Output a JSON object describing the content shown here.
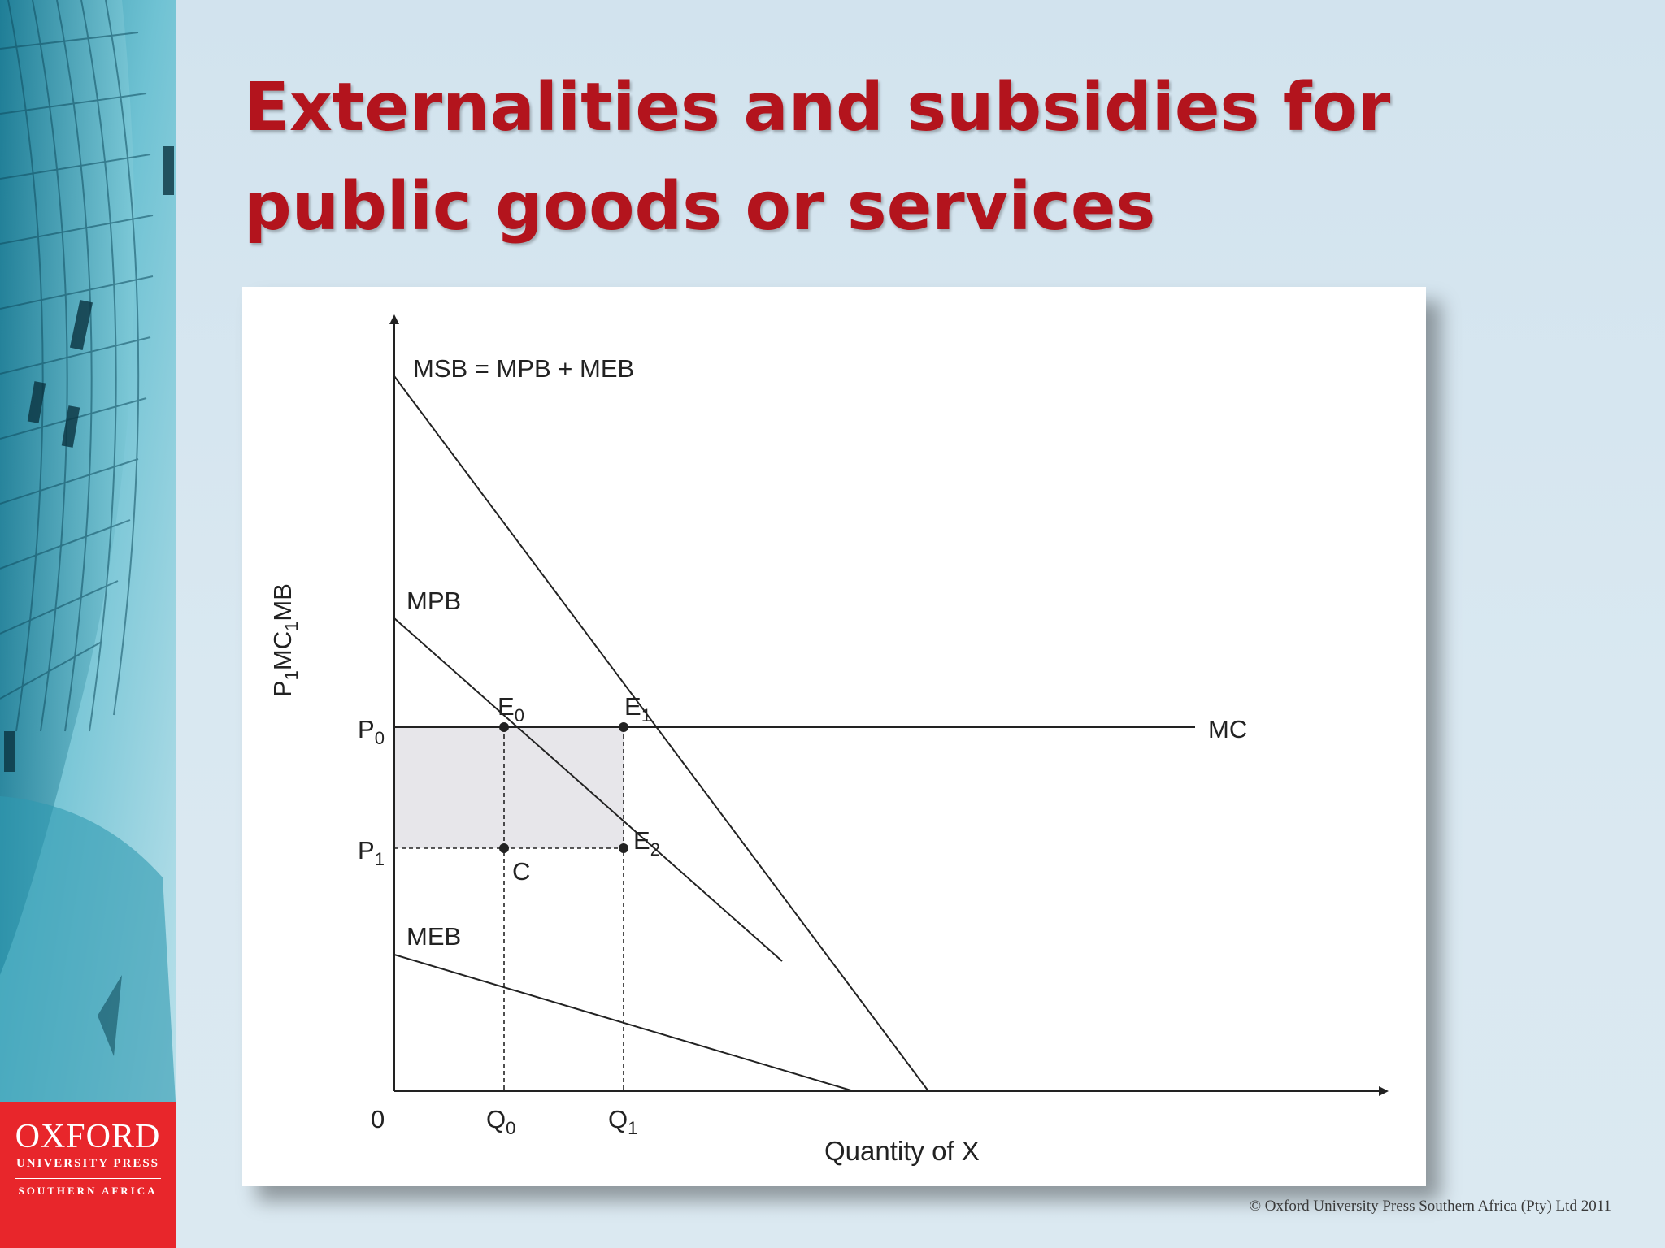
{
  "slide": {
    "title": "Externalities and subsidies for public goods or services",
    "copyright": "© Oxford University Press Southern Africa (Pty) Ltd 2011",
    "accent_color": "#b3141d"
  },
  "logo": {
    "line1": "OXFORD",
    "line2": "UNIVERSITY PRESS",
    "line3": "SOUTHERN AFRICA",
    "color": "#e8262b"
  },
  "diagram": {
    "y_axis_label": {
      "main": "P",
      "sub": "1",
      "rest": "MC",
      "sub2": "1",
      "rest2": "MB"
    },
    "x_axis_label": "Quantity of X",
    "origin": "0",
    "curves": {
      "msb": "MSB = MPB + MEB",
      "mpb": "MPB",
      "meb": "MEB",
      "mc": "MC"
    },
    "points": {
      "e0": {
        "main": "E",
        "sub": "0"
      },
      "e1": {
        "main": "E",
        "sub": "1"
      },
      "e2": {
        "main": "E",
        "sub": "2"
      },
      "c": "C"
    },
    "ticks": {
      "p0": {
        "main": "P",
        "sub": "0"
      },
      "p1": {
        "main": "P",
        "sub": "1"
      },
      "q0": {
        "main": "Q",
        "sub": "0"
      },
      "q1": {
        "main": "Q",
        "sub": "1"
      }
    },
    "shaded_color": "#e7e6ea"
  }
}
